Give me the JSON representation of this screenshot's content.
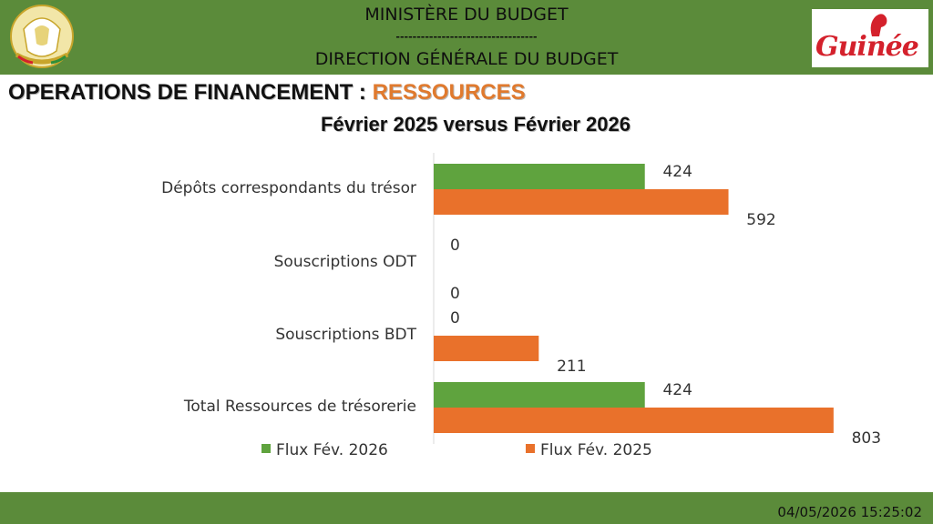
{
  "header": {
    "line1": "MINISTÈRE DU BUDGET",
    "separator": "----------------------------------",
    "line2": "DIRECTION GÉNÉRALE DU BUDGET",
    "brand_text": "Guinée"
  },
  "slide": {
    "title_main": "OPERATIONS DE FINANCEMENT : ",
    "title_accent": "RESSOURCES",
    "subtitle": "Février 2025 versus Février 2026"
  },
  "chart_data": {
    "type": "bar",
    "orientation": "horizontal",
    "categories": [
      "Dépôts  correspondants du trésor",
      "Souscriptions ODT",
      "Souscriptions BDT",
      "Total Ressources de trésorerie"
    ],
    "series": [
      {
        "name": "Flux Fév. 2026",
        "values": [
          424,
          0,
          0,
          424
        ],
        "color": "#5fa33e"
      },
      {
        "name": "Flux Fév. 2025",
        "values": [
          592,
          0,
          211,
          803
        ],
        "color": "#e9712b"
      }
    ],
    "xlim": [
      0,
      860
    ],
    "legend_position": "bottom",
    "grid": false
  },
  "footer": {
    "timestamp": "04/05/2026 15:25:02"
  }
}
